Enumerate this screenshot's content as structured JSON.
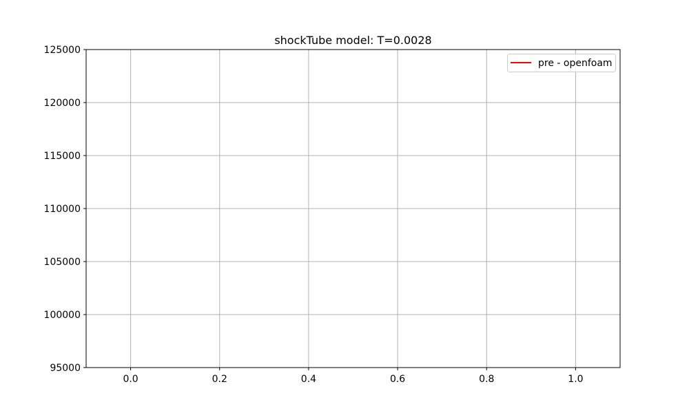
{
  "chart_data": {
    "type": "line",
    "title": "shockTube model: T=0.0028",
    "xlabel": "",
    "ylabel": "",
    "xlim": [
      -0.1,
      1.1
    ],
    "ylim": [
      95000,
      125000
    ],
    "x_ticks": [
      0.0,
      0.2,
      0.4,
      0.6,
      0.8,
      1.0
    ],
    "x_tick_labels": [
      "0.0",
      "0.2",
      "0.4",
      "0.6",
      "0.8",
      "1.0"
    ],
    "y_ticks": [
      95000,
      100000,
      105000,
      110000,
      115000,
      120000,
      125000
    ],
    "y_tick_labels": [
      "95000",
      "100000",
      "105000",
      "110000",
      "115000",
      "120000",
      "125000"
    ],
    "grid": true,
    "legend_position": "top-right",
    "series": [
      {
        "name": "pre - openfoam",
        "color": "#ff0000",
        "x": [],
        "y": []
      }
    ]
  }
}
